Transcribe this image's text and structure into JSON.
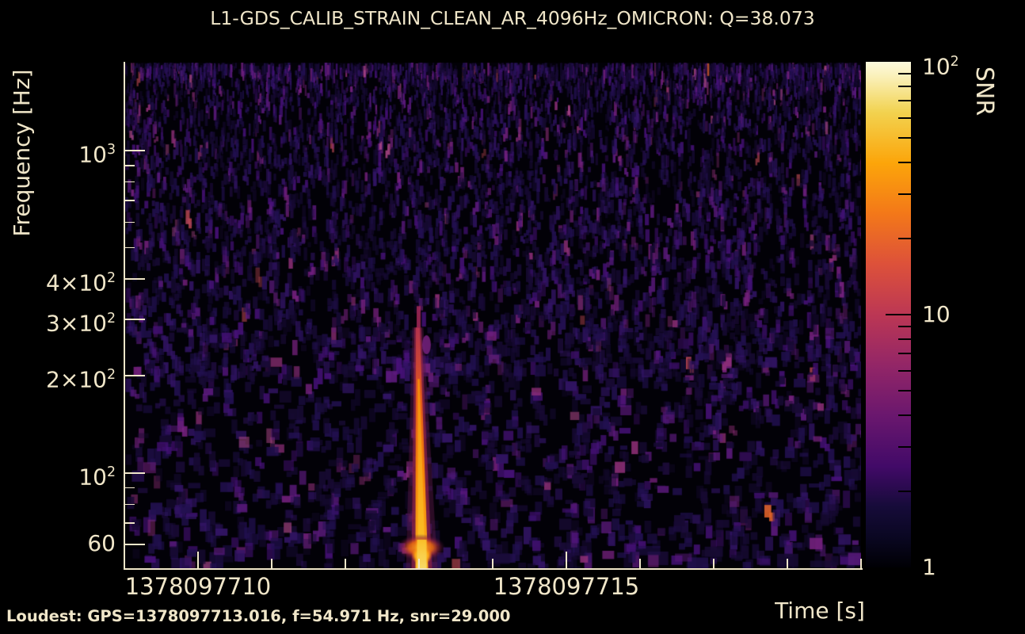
{
  "title": "L1-GDS_CALIB_STRAIN_CLEAN_AR_4096Hz_OMICRON: Q=38.073",
  "annotation": {
    "loudest": "Loudest: GPS=1378097713.016, f=54.971 Hz, snr=29.000"
  },
  "axes": {
    "xlabel": "Time [s]",
    "ylabel": "Frequency [Hz]",
    "x_major_ticks": [
      {
        "label": "1378097710",
        "value": 1378097710
      },
      {
        "label": "1378097715",
        "value": 1378097715
      }
    ],
    "x_minor_ticks": [
      1378097709,
      1378097711,
      1378097712,
      1378097713,
      1378097714,
      1378097716,
      1378097717,
      1378097718,
      1378097719
    ],
    "x_range": [
      1378097709,
      1378097719
    ],
    "y_major_ticks": [
      {
        "prefix": "",
        "base": "10",
        "sup": "3",
        "value": 1000
      },
      {
        "prefix": "4×",
        "base": "10",
        "sup": "2",
        "value": 400
      },
      {
        "prefix": "3×",
        "base": "10",
        "sup": "2",
        "value": 300
      },
      {
        "prefix": "2×",
        "base": "10",
        "sup": "2",
        "value": 200
      },
      {
        "prefix": "",
        "base": "10",
        "sup": "2",
        "value": 100
      },
      {
        "prefix": "",
        "base": "60",
        "sup": "",
        "value": 60
      }
    ],
    "y_minor_ticks": [
      900,
      800,
      700,
      600,
      500,
      90,
      80,
      70
    ],
    "y_range": [
      50.4,
      1876
    ],
    "y_scale": "log"
  },
  "colorbar": {
    "label": "SNR",
    "major_ticks": [
      {
        "base": "10",
        "sup": "2",
        "value": 100
      },
      {
        "base": "10",
        "sup": "",
        "value": 10
      },
      {
        "base": "1",
        "sup": "",
        "value": 1
      }
    ],
    "minor_ticks": [
      2,
      3,
      4,
      5,
      6,
      7,
      8,
      9,
      20,
      30,
      40,
      50,
      60,
      70,
      80,
      90
    ],
    "range": [
      1,
      100
    ],
    "scale": "log",
    "colormap": "inferno",
    "gradient": [
      {
        "p": 0.0,
        "c": "#000004"
      },
      {
        "p": 0.06,
        "c": "#0a0722"
      },
      {
        "p": 0.12,
        "c": "#160b39"
      },
      {
        "p": 0.2,
        "c": "#420a68"
      },
      {
        "p": 0.3,
        "c": "#6a176e"
      },
      {
        "p": 0.4,
        "c": "#932667"
      },
      {
        "p": 0.5,
        "c": "#bc3754"
      },
      {
        "p": 0.6,
        "c": "#dd513a"
      },
      {
        "p": 0.7,
        "c": "#f37819"
      },
      {
        "p": 0.8,
        "c": "#fca50a"
      },
      {
        "p": 0.9,
        "c": "#f2d24f"
      },
      {
        "p": 0.97,
        "c": "#faf0b8"
      },
      {
        "p": 1.0,
        "c": "#fdfadd"
      }
    ]
  },
  "colors": {
    "background": "#000000",
    "text": "#f0e6c9",
    "axis_tick": "#f0e6c9",
    "colorbar_tick": "#000000",
    "plot_background": "#020107"
  },
  "noise": {
    "seed": 20230901,
    "streaks": 7200,
    "blobs": 540,
    "edge_blobs": 18,
    "palette": [
      {
        "c": "#170a33",
        "w": 0.36
      },
      {
        "c": "#221050",
        "w": 0.24
      },
      {
        "c": "#321465",
        "w": 0.16
      },
      {
        "c": "#471179",
        "w": 0.1
      },
      {
        "c": "#5c1a7e",
        "w": 0.06
      },
      {
        "c": "#792282",
        "w": 0.035
      },
      {
        "c": "#8f2f78",
        "w": 0.018
      },
      {
        "c": "#aa4687",
        "w": 0.005
      },
      {
        "c": "#c04a54",
        "w": 0.0015
      },
      {
        "c": "#e0632a",
        "w": 0.0005
      }
    ]
  },
  "spike": {
    "time_gps": 1378097713.016,
    "peak_frequency_hz": 54.971,
    "peak_snr": 29.0,
    "top_frequency_hz": 185
  },
  "chart_data": {
    "type": "heatmap",
    "subtype": "omicron-q-transform-spectrogram",
    "title": "L1-GDS_CALIB_STRAIN_CLEAN_AR_4096Hz_OMICRON: Q=38.073",
    "channel": "L1-GDS_CALIB_STRAIN_CLEAN_AR_4096Hz_OMICRON",
    "q_value": 38.073,
    "xlabel": "Time [s]",
    "ylabel": "Frequency [Hz]",
    "colorbar_label": "SNR",
    "x_range_gps": [
      1378097709,
      1378097719
    ],
    "x_tick_labels": [
      "1378097710",
      "1378097715"
    ],
    "y_scale": "log",
    "y_range_hz": [
      50,
      1880
    ],
    "y_tick_values_hz": [
      1000,
      400,
      300,
      200,
      100,
      60
    ],
    "color_scale": "log",
    "color_range_snr": [
      1,
      100
    ],
    "colormap": "inferno",
    "background": "speckled low-SNR noise (SNR ~1-6), denser fine vertical streaks at high frequency, sparser blocky tiles at low frequency",
    "loudest_tile": {
      "gps": 1378097713.016,
      "frequency_hz": 54.971,
      "snr": 29.0
    },
    "main_feature": {
      "description": "Loud glitch: narrow bright vertical track at t≈1378097713.0 extending from ~50 Hz up to ~185 Hz, widest and brightest (yellow core, SNR≈29) near 55 Hz at the bottom edge, fading to red at the high-frequency tip; faint detached speck near 240 Hz",
      "time_gps": 1378097713.016,
      "frequency_extent_hz": [
        50,
        185
      ],
      "peak_snr": 29.0
    },
    "legend_position": "right colorbar",
    "grid": false
  }
}
